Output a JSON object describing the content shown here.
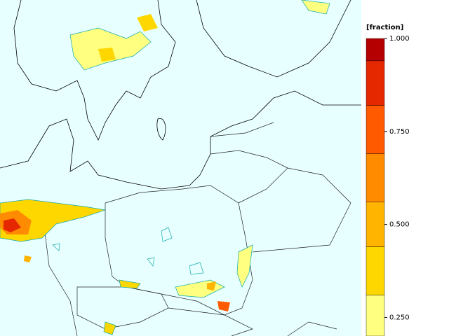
{
  "colorbar": {
    "title": "[fraction]",
    "lim": [
      0.2,
      1.0
    ],
    "bounds": [
      0.2,
      0.31,
      0.44,
      0.56,
      0.69,
      0.82,
      0.94,
      1.0
    ],
    "colors": [
      "#ffff80",
      "#ffd700",
      "#ffb400",
      "#ff8c00",
      "#ff5a00",
      "#e62800",
      "#b40000"
    ],
    "ticks": [
      {
        "value": 1.0,
        "label": "1.000"
      },
      {
        "value": 0.75,
        "label": "0.750"
      },
      {
        "value": 0.5,
        "label": "0.500"
      },
      {
        "value": 0.25,
        "label": "0.250"
      }
    ]
  }
}
